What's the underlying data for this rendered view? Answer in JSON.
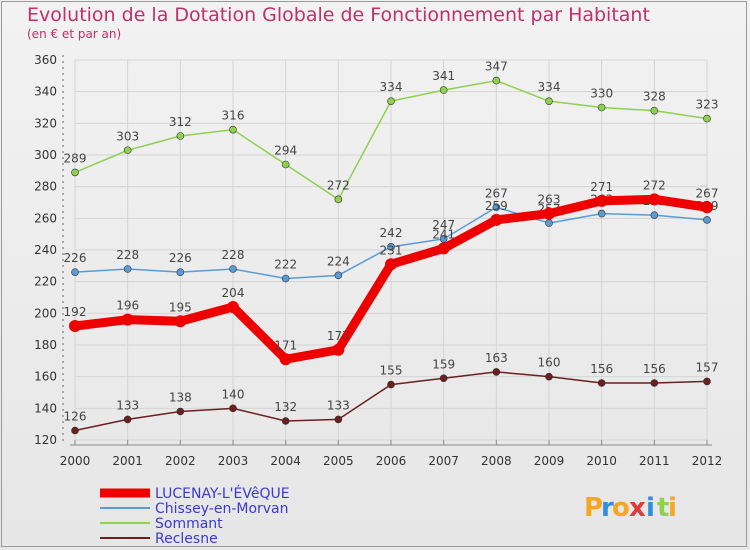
{
  "chart_data": {
    "type": "line",
    "title": "Evolution de la Dotation Globale de Fonctionnement par Habitant",
    "subtitle": "(en € et par an)",
    "x": [
      "2000",
      "2001",
      "2002",
      "2003",
      "2004",
      "2005",
      "2006",
      "2007",
      "2008",
      "2009",
      "2010",
      "2011",
      "2012"
    ],
    "ylim": [
      120,
      360
    ],
    "yticks": [
      120,
      140,
      160,
      180,
      200,
      220,
      240,
      260,
      280,
      300,
      320,
      340,
      360
    ],
    "grid": true,
    "series": [
      {
        "name": "LUCENAY-L'ÉVêQUE",
        "color": "#ee0000",
        "values": [
          192,
          196,
          195,
          204,
          171,
          177,
          231,
          241,
          259,
          263,
          271,
          272,
          267
        ]
      },
      {
        "name": "Chissey-en-Morvan",
        "color": "#5a9bd5",
        "values": [
          226,
          228,
          226,
          228,
          222,
          224,
          242,
          247,
          267,
          257,
          263,
          262,
          259
        ]
      },
      {
        "name": "Sommant",
        "color": "#8fd14f",
        "values": [
          289,
          303,
          312,
          316,
          294,
          272,
          334,
          341,
          347,
          334,
          330,
          328,
          323
        ]
      },
      {
        "name": "Reclesne",
        "color": "#6b1f1f",
        "values": [
          126,
          133,
          138,
          140,
          132,
          133,
          155,
          159,
          163,
          160,
          156,
          156,
          157
        ]
      }
    ]
  },
  "logo": {
    "text": "Proxiti",
    "letters": [
      "P",
      "r",
      "o",
      "x",
      "i",
      "t",
      "i"
    ],
    "colors": [
      "#f5a623",
      "#2f8ee0",
      "#f5a623",
      "#e03a3a",
      "#2f8ee0",
      "#8fd14f",
      "#f5a623"
    ]
  }
}
